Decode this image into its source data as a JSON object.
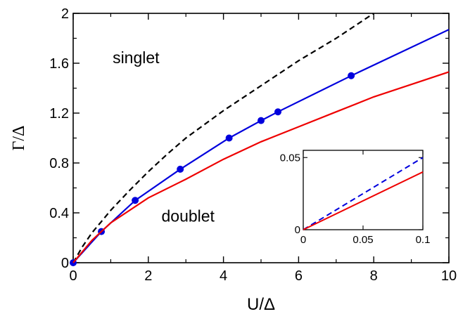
{
  "chart_data": {
    "type": "line",
    "xlabel": "U/Δ",
    "ylabel": "Γ/Δ",
    "xlim": [
      0,
      10
    ],
    "ylim": [
      0,
      2
    ],
    "xticks": [
      "0",
      "2",
      "4",
      "6",
      "8",
      "10"
    ],
    "yticks": [
      "0",
      "0.4",
      "0.8",
      "1.2",
      "1.6",
      "2"
    ],
    "annotations": [
      {
        "text": "singlet",
        "x": 1.05,
        "y": 1.6
      },
      {
        "text": "doublet",
        "x": 2.35,
        "y": 0.33
      }
    ],
    "colors": {
      "blue": "#0000dd",
      "red": "#ee0000",
      "black": "#000000"
    },
    "series": [
      {
        "style": "dashed",
        "color": "#000000",
        "x": [
          0,
          0.25,
          0.5,
          0.75,
          1.0,
          1.5,
          2.0,
          2.5,
          3.0,
          4.0,
          5.0,
          6.0,
          7.0,
          8.0
        ],
        "y": [
          0,
          0.13,
          0.24,
          0.33,
          0.42,
          0.58,
          0.73,
          0.87,
          1.0,
          1.22,
          1.42,
          1.62,
          1.8,
          2.0
        ]
      },
      {
        "style": "solid",
        "color": "#0000dd",
        "markers": true,
        "x": [
          0,
          0.75,
          1.65,
          2.85,
          4.15,
          5.0,
          5.45,
          7.4,
          10
        ],
        "y": [
          0,
          0.25,
          0.5,
          0.75,
          1.0,
          1.14,
          1.21,
          1.5,
          1.87
        ]
      },
      {
        "style": "solid",
        "color": "#ee0000",
        "x": [
          0,
          0.5,
          1.0,
          2.0,
          3.0,
          4.0,
          5.0,
          6.0,
          7.0,
          8.0,
          9.0,
          10.0
        ],
        "y": [
          0,
          0.18,
          0.32,
          0.52,
          0.67,
          0.83,
          0.97,
          1.09,
          1.21,
          1.33,
          1.43,
          1.53
        ]
      }
    ],
    "inset": {
      "xlim": [
        0,
        0.1
      ],
      "ylim": [
        0,
        0.055
      ],
      "xticks": [
        "0",
        "0.05",
        "0.1"
      ],
      "yticks": [
        "0",
        "0.05"
      ],
      "series": [
        {
          "style": "dashed",
          "color": "#0000dd",
          "x": [
            0,
            0.1
          ],
          "y": [
            0,
            0.05
          ]
        },
        {
          "style": "solid",
          "color": "#ee0000",
          "x": [
            0,
            0.1
          ],
          "y": [
            0,
            0.04
          ]
        }
      ]
    }
  }
}
